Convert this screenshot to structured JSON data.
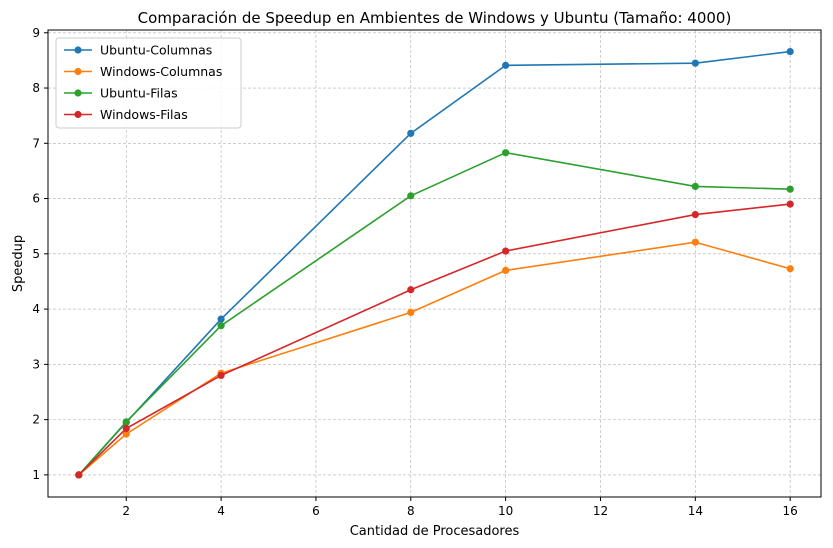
{
  "chart_data": {
    "type": "line",
    "title": "Comparación de Speedup en Ambientes de Windows y Ubuntu (Tamaño: 4000)",
    "xlabel": "Cantidad de Procesadores",
    "ylabel": "Speedup",
    "xlim": [
      0.35,
      16.65
    ],
    "ylim": [
      0.6,
      9.05
    ],
    "xticks": [
      2,
      4,
      6,
      8,
      10,
      12,
      14,
      16
    ],
    "yticks": [
      1,
      2,
      3,
      4,
      5,
      6,
      7,
      8,
      9
    ],
    "grid": true,
    "legend_position": "top-left",
    "x": [
      1,
      2,
      4,
      8,
      10,
      14,
      16
    ],
    "series": [
      {
        "name": "Ubuntu-Columnas",
        "color": "#1f77b4",
        "values": [
          1.0,
          1.95,
          3.82,
          7.18,
          8.41,
          8.45,
          8.66
        ]
      },
      {
        "name": "Windows-Columnas",
        "color": "#ff7f0e",
        "values": [
          1.0,
          1.74,
          2.84,
          3.94,
          4.7,
          5.21,
          4.73
        ]
      },
      {
        "name": "Ubuntu-Filas",
        "color": "#2ca02c",
        "values": [
          1.0,
          1.96,
          3.7,
          6.05,
          6.83,
          6.22,
          6.17
        ]
      },
      {
        "name": "Windows-Filas",
        "color": "#d62728",
        "values": [
          1.0,
          1.84,
          2.8,
          4.35,
          5.05,
          5.71,
          5.9
        ]
      }
    ]
  }
}
